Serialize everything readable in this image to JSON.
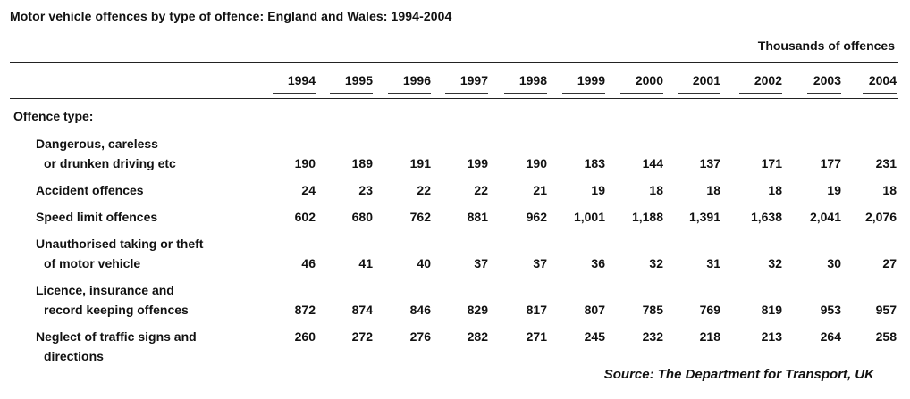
{
  "title": "Motor vehicle offences by type of offence: England and Wales: 1994-2004",
  "units": "Thousands of offences",
  "section_label": "Offence type:",
  "years": [
    "1994",
    "1995",
    "1996",
    "1997",
    "1998",
    "1999",
    "2000",
    "2001",
    "2002",
    "2003",
    "2004"
  ],
  "rows": [
    {
      "label_lines": [
        "Dangerous, careless",
        "or drunken driving etc"
      ],
      "values": [
        "190",
        "189",
        "191",
        "199",
        "190",
        "183",
        "144",
        "137",
        "171",
        "177",
        "231"
      ]
    },
    {
      "label_lines": [
        "Accident offences"
      ],
      "values": [
        "24",
        "23",
        "22",
        "22",
        "21",
        "19",
        "18",
        "18",
        "18",
        "19",
        "18"
      ]
    },
    {
      "label_lines": [
        "Speed limit offences"
      ],
      "values": [
        "602",
        "680",
        "762",
        "881",
        "962",
        "1,001",
        "1,188",
        "1,391",
        "1,638",
        "2,041",
        "2,076"
      ]
    },
    {
      "label_lines": [
        "Unauthorised taking or theft",
        "of motor vehicle"
      ],
      "values": [
        "46",
        "41",
        "40",
        "37",
        "37",
        "36",
        "32",
        "31",
        "32",
        "30",
        "27"
      ]
    },
    {
      "label_lines": [
        "Licence, insurance and",
        "record keeping offences"
      ],
      "values": [
        "872",
        "874",
        "846",
        "829",
        "817",
        "807",
        "785",
        "769",
        "819",
        "953",
        "957"
      ]
    },
    {
      "label_lines": [
        "Neglect of traffic signs and",
        "directions"
      ],
      "values": [
        "260",
        "272",
        "276",
        "282",
        "271",
        "245",
        "232",
        "218",
        "213",
        "264",
        "258"
      ]
    }
  ],
  "source": "Source: The Department for Transport, UK"
}
